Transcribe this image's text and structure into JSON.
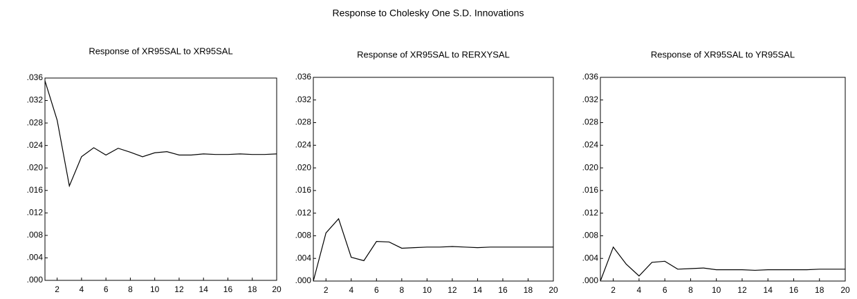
{
  "title": "Response to Cholesky One S.D. Innovations",
  "chart_data": [
    {
      "type": "line",
      "title": "Response of XR95SAL to XR95SAL",
      "x": [
        1,
        2,
        3,
        4,
        5,
        6,
        7,
        8,
        9,
        10,
        11,
        12,
        13,
        14,
        15,
        16,
        17,
        18,
        19,
        20
      ],
      "series": [
        {
          "color": "#000000",
          "values": [
            0.0355,
            0.0285,
            0.0168,
            0.022,
            0.0236,
            0.0223,
            0.0235,
            0.0228,
            0.022,
            0.0227,
            0.0229,
            0.0223,
            0.0223,
            0.0225,
            0.0224,
            0.0224,
            0.0225,
            0.0224,
            0.0224,
            0.0225
          ]
        }
      ],
      "xlim": [
        1,
        20
      ],
      "xticks": [
        2,
        4,
        6,
        8,
        10,
        12,
        14,
        16,
        18,
        20
      ],
      "ylim": [
        0,
        0.036
      ],
      "yticks": [
        {
          "value": 0,
          "label": ".000"
        },
        {
          "value": 0.004,
          "label": ".004"
        },
        {
          "value": 0.008,
          "label": ".008"
        },
        {
          "value": 0.012,
          "label": ".012"
        },
        {
          "value": 0.016,
          "label": ".016"
        },
        {
          "value": 0.02,
          "label": ".020"
        },
        {
          "value": 0.024,
          "label": ".024"
        },
        {
          "value": 0.028,
          "label": ".028"
        },
        {
          "value": 0.032,
          "label": ".032"
        },
        {
          "value": 0.036,
          "label": ".036"
        }
      ]
    },
    {
      "type": "line",
      "title": "Response of XR95SAL to RERXYSAL",
      "x": [
        1,
        2,
        3,
        4,
        5,
        6,
        7,
        8,
        9,
        10,
        11,
        12,
        13,
        14,
        15,
        16,
        17,
        18,
        19,
        20
      ],
      "series": [
        {
          "color": "#000000",
          "values": [
            0,
            0.0085,
            0.011,
            0.0042,
            0.0036,
            0.007,
            0.0069,
            0.0058,
            0.0059,
            0.006,
            0.006,
            0.0061,
            0.006,
            0.0059,
            0.006,
            0.006,
            0.006,
            0.006,
            0.006,
            0.006
          ]
        }
      ],
      "xlim": [
        1,
        20
      ],
      "xticks": [
        2,
        4,
        6,
        8,
        10,
        12,
        14,
        16,
        18,
        20
      ],
      "ylim": [
        0,
        0.036
      ],
      "yticks": [
        {
          "value": 0,
          "label": ".000"
        },
        {
          "value": 0.004,
          "label": ".004"
        },
        {
          "value": 0.008,
          "label": ".008"
        },
        {
          "value": 0.012,
          "label": ".012"
        },
        {
          "value": 0.016,
          "label": ".016"
        },
        {
          "value": 0.02,
          "label": ".020"
        },
        {
          "value": 0.024,
          "label": ".024"
        },
        {
          "value": 0.028,
          "label": ".028"
        },
        {
          "value": 0.032,
          "label": ".032"
        },
        {
          "value": 0.036,
          "label": ".036"
        }
      ]
    },
    {
      "type": "line",
      "title": "Response of XR95SAL to YR95SAL",
      "x": [
        1,
        2,
        3,
        4,
        5,
        6,
        7,
        8,
        9,
        10,
        11,
        12,
        13,
        14,
        15,
        16,
        17,
        18,
        19,
        20
      ],
      "series": [
        {
          "color": "#000000",
          "values": [
            0,
            0.006,
            0.003,
            0.0009,
            0.0033,
            0.0035,
            0.0021,
            0.0022,
            0.0023,
            0.002,
            0.002,
            0.002,
            0.0019,
            0.002,
            0.002,
            0.002,
            0.002,
            0.0021,
            0.0021,
            0.0021
          ]
        }
      ],
      "xlim": [
        1,
        20
      ],
      "xticks": [
        2,
        4,
        6,
        8,
        10,
        12,
        14,
        16,
        18,
        20
      ],
      "ylim": [
        0,
        0.036
      ],
      "yticks": [
        {
          "value": 0,
          "label": ".000"
        },
        {
          "value": 0.004,
          "label": ".004"
        },
        {
          "value": 0.008,
          "label": ".008"
        },
        {
          "value": 0.012,
          "label": ".012"
        },
        {
          "value": 0.016,
          "label": ".016"
        },
        {
          "value": 0.02,
          "label": ".020"
        },
        {
          "value": 0.024,
          "label": ".024"
        },
        {
          "value": 0.028,
          "label": ".028"
        },
        {
          "value": 0.032,
          "label": ".032"
        },
        {
          "value": 0.036,
          "label": ".036"
        }
      ]
    }
  ]
}
